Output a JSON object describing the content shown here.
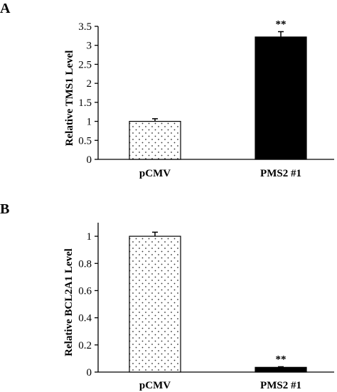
{
  "chart_data": [
    {
      "type": "bar",
      "panel": "A",
      "categories": [
        "pCMV",
        "PMS2 #1"
      ],
      "values": [
        1.0,
        3.22
      ],
      "errors": [
        0.07,
        0.14
      ],
      "annotations": [
        "",
        "**"
      ],
      "ylabel": "Relative TMS1 Level",
      "xlabel": "",
      "ylim": [
        0,
        3.5
      ],
      "ytick_values": [
        0,
        0.5,
        1,
        1.5,
        2,
        2.5,
        3,
        3.5
      ],
      "ytick_labels": [
        "0",
        "0.5",
        "1",
        "1.5",
        "2",
        "2.5",
        "3",
        "3.5"
      ],
      "bar_fills": [
        "dots",
        "#000000"
      ],
      "grid": false
    },
    {
      "type": "bar",
      "panel": "B",
      "categories": [
        "pCMV",
        "PMS2 #1"
      ],
      "values": [
        1.0,
        0.035
      ],
      "errors": [
        0.03,
        0.004
      ],
      "annotations": [
        "",
        "**"
      ],
      "ylabel": "Relative BCL2A1 Level",
      "xlabel": "",
      "ylim": [
        0,
        1.1
      ],
      "ytick_values": [
        0,
        0.2,
        0.4,
        0.6,
        0.8,
        1
      ],
      "ytick_labels": [
        "0",
        "0.2",
        "0.4",
        "0.6",
        "0.8",
        "1"
      ],
      "bar_fills": [
        "dots",
        "#000000"
      ],
      "grid": false
    }
  ]
}
